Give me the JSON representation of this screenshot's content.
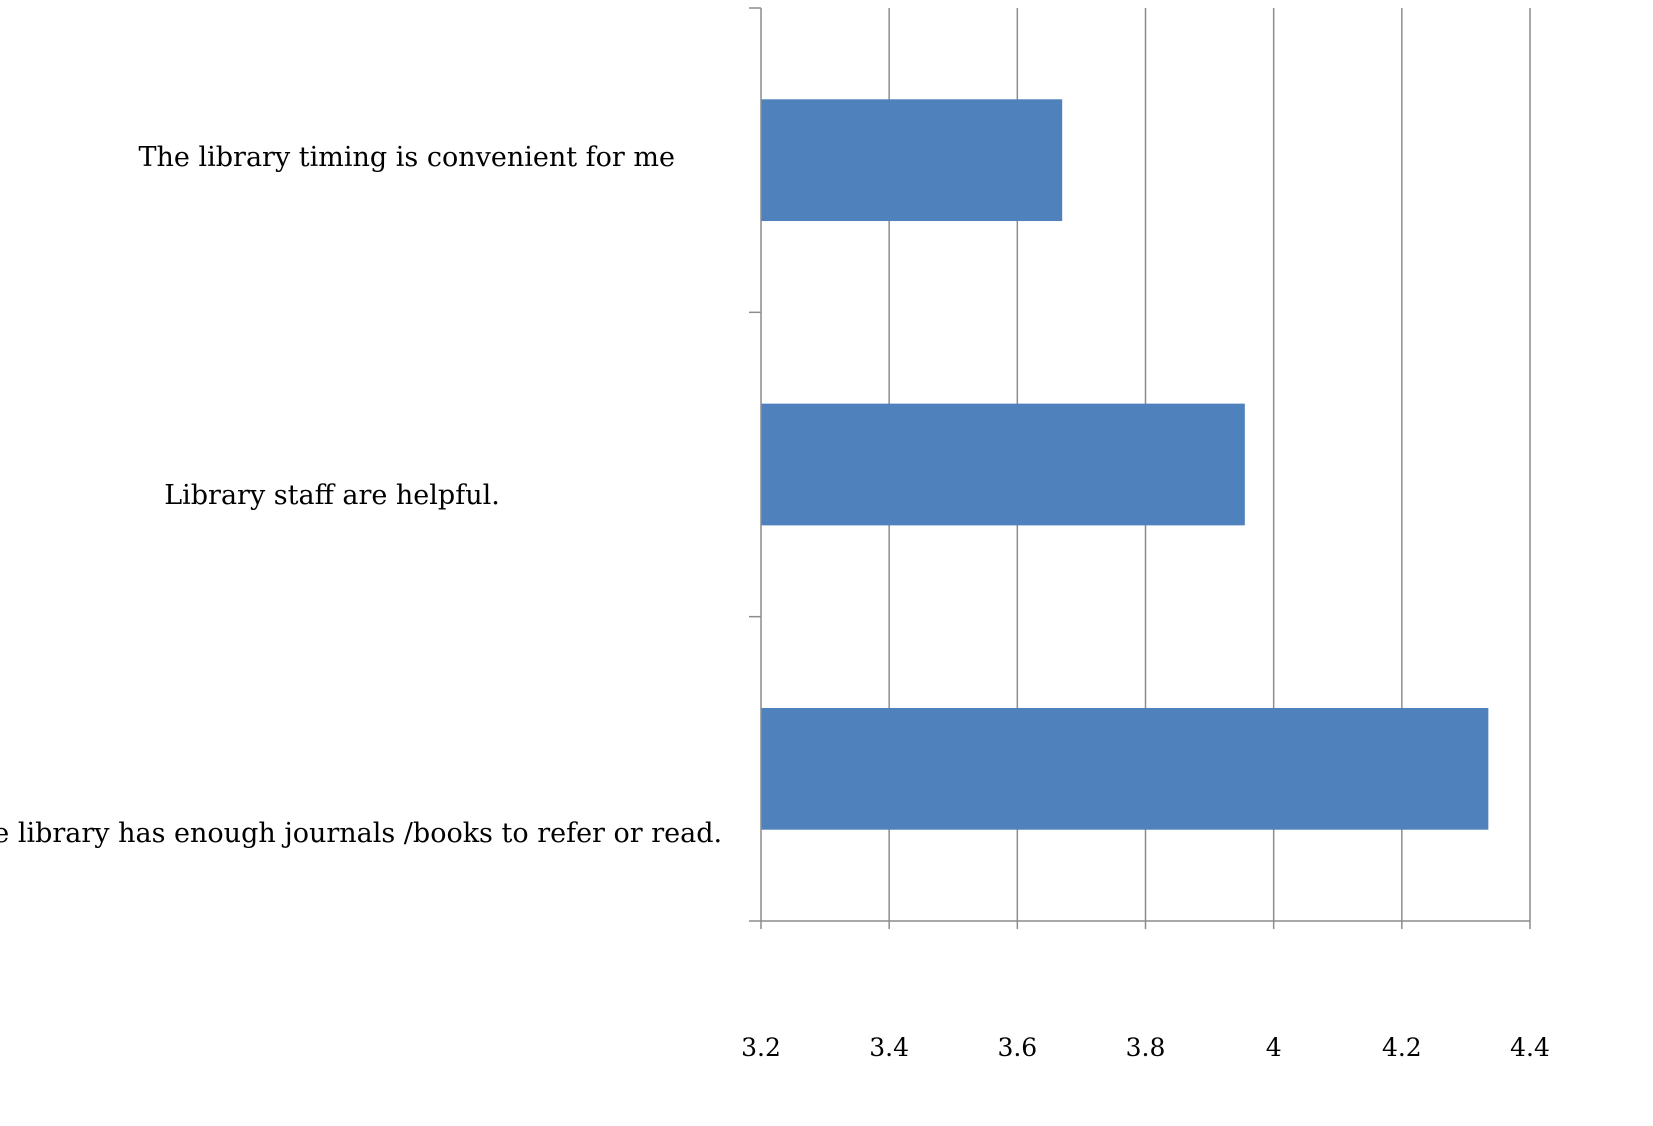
{
  "chart_data": {
    "type": "bar",
    "orientation": "horizontal",
    "categories": [
      "The library timing is convenient for me",
      "Library staff are helpful.",
      "The library has enough journals /books to refer or read."
    ],
    "values": [
      3.67,
      3.955,
      4.335
    ],
    "xlim": [
      3.2,
      4.4
    ],
    "xticks": [
      "3.2",
      "3.4",
      "3.6",
      "3.8",
      "4",
      "4.2",
      "4.4"
    ],
    "grid": "vertical",
    "legend": "none",
    "bar_color": "#4f81bd",
    "title": "",
    "xlabel": "",
    "ylabel": ""
  }
}
